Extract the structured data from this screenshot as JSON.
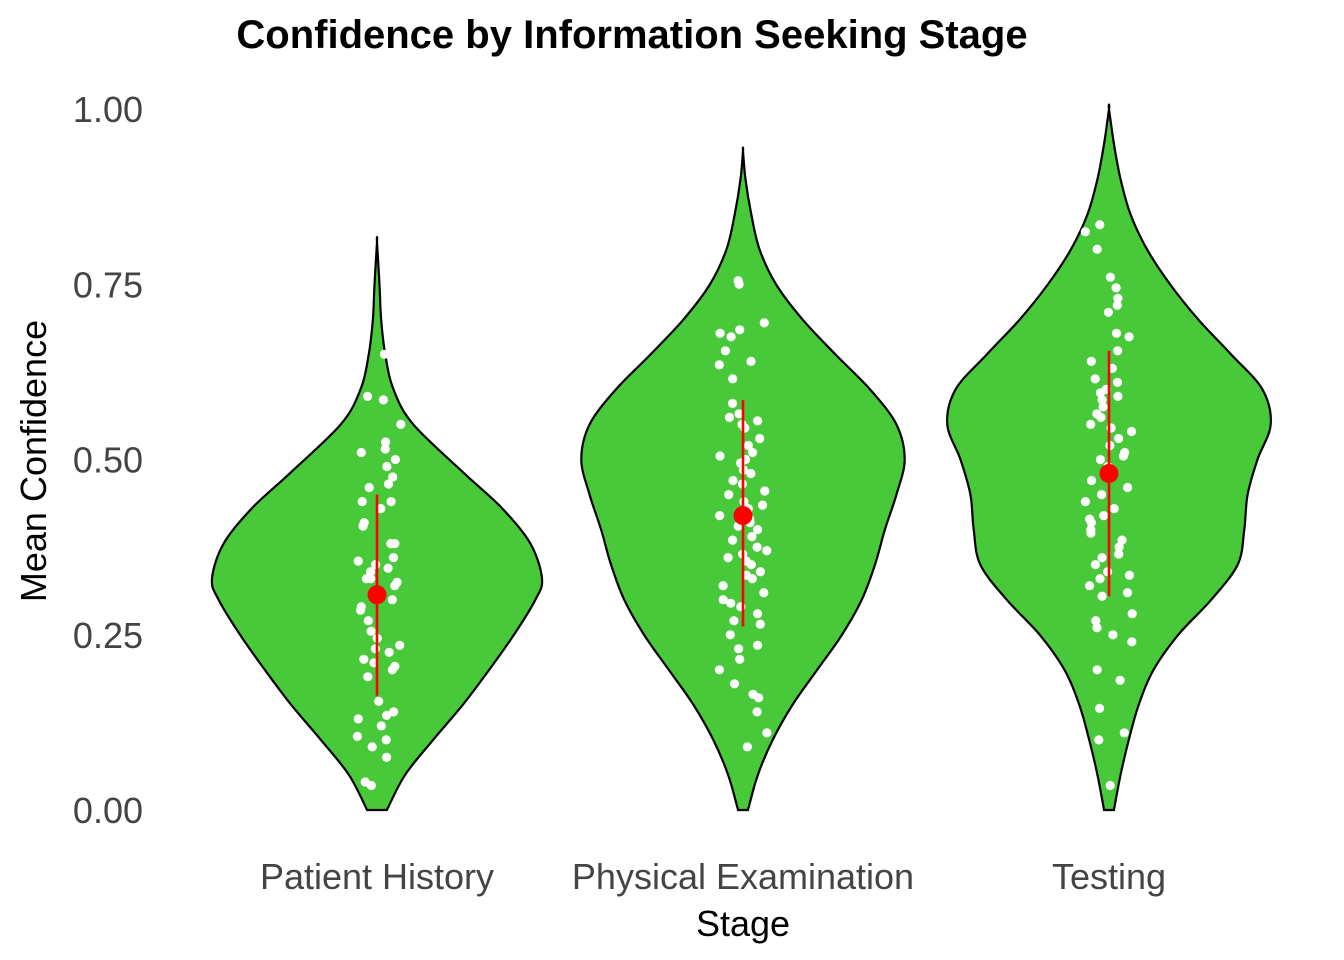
{
  "chart_data": {
    "type": "violin",
    "title": "Confidence by Information Seeking Stage",
    "xlabel": "Stage",
    "ylabel": "Mean Confidence",
    "ylim": [
      0,
      1
    ],
    "yticks": [
      0,
      0.25,
      0.5,
      0.75,
      1.0
    ],
    "ytick_labels": [
      "0.00",
      "0.25",
      "0.50",
      "0.75",
      "1.00"
    ],
    "categories": [
      "Patient History",
      "Physical Examination",
      "Testing"
    ],
    "grid": false,
    "colors": {
      "violin_fill": "#48c93a",
      "violin_stroke": "#000000",
      "points": "#ffffff",
      "summary": "#ff0000"
    },
    "series": [
      {
        "category": "Patient History",
        "ymin": 0.0,
        "ymax": 0.81,
        "density": [
          [
            0.0,
            0.06
          ],
          [
            0.05,
            0.17
          ],
          [
            0.1,
            0.34
          ],
          [
            0.15,
            0.52
          ],
          [
            0.2,
            0.68
          ],
          [
            0.25,
            0.83
          ],
          [
            0.3,
            0.96
          ],
          [
            0.33,
            1.0
          ],
          [
            0.38,
            0.93
          ],
          [
            0.43,
            0.76
          ],
          [
            0.48,
            0.53
          ],
          [
            0.55,
            0.22
          ],
          [
            0.6,
            0.1
          ],
          [
            0.65,
            0.05
          ],
          [
            0.7,
            0.025
          ],
          [
            0.75,
            0.015
          ],
          [
            0.81,
            0.0
          ]
        ],
        "mean": 0.307,
        "lower": 0.163,
        "upper": 0.45,
        "points": [
          0.65,
          0.59,
          0.585,
          0.55,
          0.525,
          0.515,
          0.51,
          0.5,
          0.49,
          0.475,
          0.465,
          0.46,
          0.44,
          0.44,
          0.43,
          0.41,
          0.405,
          0.38,
          0.38,
          0.36,
          0.355,
          0.35,
          0.345,
          0.34,
          0.33,
          0.33,
          0.325,
          0.32,
          0.31,
          0.305,
          0.3,
          0.29,
          0.285,
          0.27,
          0.255,
          0.245,
          0.235,
          0.23,
          0.225,
          0.215,
          0.21,
          0.205,
          0.2,
          0.19,
          0.155,
          0.14,
          0.135,
          0.13,
          0.12,
          0.105,
          0.1,
          0.09,
          0.075,
          0.04,
          0.035
        ]
      },
      {
        "category": "Physical Examination",
        "ymin": 0.0,
        "ymax": 0.94,
        "density": [
          [
            0.0,
            0.03
          ],
          [
            0.05,
            0.09
          ],
          [
            0.1,
            0.18
          ],
          [
            0.15,
            0.3
          ],
          [
            0.2,
            0.45
          ],
          [
            0.25,
            0.6
          ],
          [
            0.3,
            0.72
          ],
          [
            0.35,
            0.8
          ],
          [
            0.4,
            0.86
          ],
          [
            0.45,
            0.93
          ],
          [
            0.5,
            0.98
          ],
          [
            0.55,
            0.93
          ],
          [
            0.6,
            0.77
          ],
          [
            0.65,
            0.56
          ],
          [
            0.7,
            0.36
          ],
          [
            0.75,
            0.2
          ],
          [
            0.8,
            0.1
          ],
          [
            0.85,
            0.05
          ],
          [
            0.9,
            0.015
          ],
          [
            0.94,
            0.0
          ]
        ],
        "mean": 0.42,
        "lower": 0.262,
        "upper": 0.585,
        "points": [
          0.755,
          0.75,
          0.695,
          0.685,
          0.68,
          0.675,
          0.655,
          0.64,
          0.635,
          0.615,
          0.58,
          0.565,
          0.56,
          0.555,
          0.55,
          0.545,
          0.53,
          0.52,
          0.51,
          0.505,
          0.5,
          0.495,
          0.485,
          0.48,
          0.47,
          0.465,
          0.455,
          0.45,
          0.44,
          0.435,
          0.43,
          0.42,
          0.415,
          0.41,
          0.405,
          0.4,
          0.39,
          0.385,
          0.375,
          0.37,
          0.365,
          0.36,
          0.355,
          0.35,
          0.34,
          0.335,
          0.33,
          0.32,
          0.31,
          0.3,
          0.295,
          0.29,
          0.28,
          0.27,
          0.265,
          0.25,
          0.235,
          0.23,
          0.215,
          0.2,
          0.18,
          0.165,
          0.16,
          0.14,
          0.11,
          0.09,
          0.035
        ]
      },
      {
        "category": "Testing",
        "ymin": 0.0,
        "ymax": 1.0,
        "density": [
          [
            0.0,
            0.03
          ],
          [
            0.05,
            0.07
          ],
          [
            0.1,
            0.12
          ],
          [
            0.15,
            0.18
          ],
          [
            0.2,
            0.27
          ],
          [
            0.25,
            0.42
          ],
          [
            0.3,
            0.62
          ],
          [
            0.35,
            0.78
          ],
          [
            0.4,
            0.82
          ],
          [
            0.45,
            0.84
          ],
          [
            0.5,
            0.9
          ],
          [
            0.55,
            0.98
          ],
          [
            0.6,
            0.93
          ],
          [
            0.65,
            0.74
          ],
          [
            0.7,
            0.54
          ],
          [
            0.75,
            0.37
          ],
          [
            0.8,
            0.23
          ],
          [
            0.85,
            0.13
          ],
          [
            0.9,
            0.07
          ],
          [
            0.95,
            0.03
          ],
          [
            1.0,
            0.0
          ]
        ],
        "mean": 0.48,
        "lower": 0.305,
        "upper": 0.655,
        "points": [
          0.835,
          0.825,
          0.8,
          0.76,
          0.745,
          0.73,
          0.72,
          0.71,
          0.68,
          0.675,
          0.655,
          0.64,
          0.63,
          0.615,
          0.61,
          0.6,
          0.595,
          0.59,
          0.585,
          0.575,
          0.565,
          0.56,
          0.55,
          0.545,
          0.54,
          0.53,
          0.52,
          0.51,
          0.505,
          0.5,
          0.49,
          0.48,
          0.47,
          0.46,
          0.45,
          0.44,
          0.43,
          0.42,
          0.415,
          0.41,
          0.4,
          0.395,
          0.385,
          0.375,
          0.365,
          0.36,
          0.35,
          0.34,
          0.335,
          0.33,
          0.32,
          0.31,
          0.305,
          0.28,
          0.27,
          0.26,
          0.25,
          0.24,
          0.2,
          0.185,
          0.145,
          0.11,
          0.1,
          0.035
        ]
      }
    ]
  }
}
